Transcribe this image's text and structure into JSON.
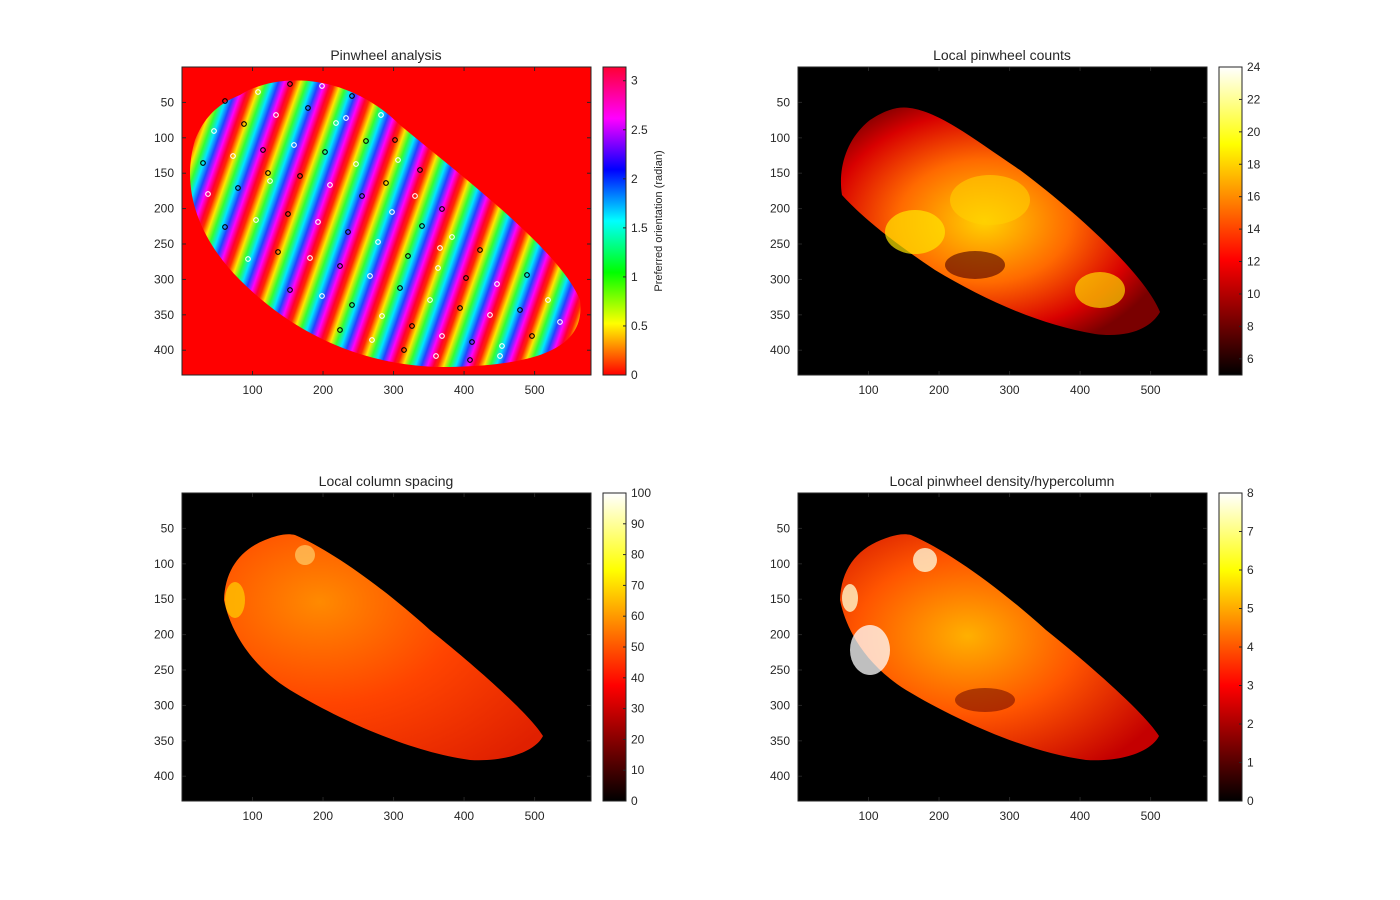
{
  "chart_data": [
    {
      "type": "heatmap",
      "title": "Pinwheel analysis",
      "colormap": "hsv",
      "colorbar_label": "Preferred orientation (radian)",
      "colorbar_ticks": [
        "0",
        "0.5",
        "1",
        "1.5",
        "2",
        "2.5",
        "3"
      ],
      "colorbar_values": [
        0,
        0.5,
        1,
        1.5,
        2,
        2.5,
        3
      ],
      "clim": [
        0,
        3.14
      ],
      "background_color": "#ff0000",
      "xlim": [
        0,
        580
      ],
      "ylim": [
        0,
        435
      ],
      "xticks": [
        "100",
        "200",
        "300",
        "400",
        "500"
      ],
      "xtick_values": [
        100,
        200,
        300,
        400,
        500
      ],
      "yticks": [
        "50",
        "100",
        "150",
        "200",
        "250",
        "300",
        "350",
        "400"
      ],
      "ytick_values": [
        50,
        100,
        150,
        200,
        250,
        300,
        350,
        400
      ],
      "overlay": "pinwheel centers (white and black circles)",
      "legend": "none",
      "grid": false
    },
    {
      "type": "heatmap",
      "title": "Local pinwheel counts",
      "colormap": "hot",
      "colorbar_ticks": [
        "6",
        "8",
        "10",
        "12",
        "14",
        "16",
        "18",
        "20",
        "22",
        "24"
      ],
      "colorbar_values": [
        6,
        8,
        10,
        12,
        14,
        16,
        18,
        20,
        22,
        24
      ],
      "clim": [
        5,
        24
      ],
      "background_color": "#000000",
      "xlim": [
        0,
        580
      ],
      "ylim": [
        0,
        435
      ],
      "xticks": [
        "100",
        "200",
        "300",
        "400",
        "500"
      ],
      "xtick_values": [
        100,
        200,
        300,
        400,
        500
      ],
      "yticks": [
        "50",
        "100",
        "150",
        "200",
        "250",
        "300",
        "350",
        "400"
      ],
      "ytick_values": [
        50,
        100,
        150,
        200,
        250,
        300,
        350,
        400
      ],
      "legend": "none",
      "grid": false
    },
    {
      "type": "heatmap",
      "title": "Local column spacing",
      "colormap": "hot",
      "colorbar_ticks": [
        "0",
        "10",
        "20",
        "30",
        "40",
        "50",
        "60",
        "70",
        "80",
        "90",
        "100"
      ],
      "colorbar_values": [
        0,
        10,
        20,
        30,
        40,
        50,
        60,
        70,
        80,
        90,
        100
      ],
      "clim": [
        0,
        100
      ],
      "background_color": "#000000",
      "xlim": [
        0,
        580
      ],
      "ylim": [
        0,
        435
      ],
      "xticks": [
        "100",
        "200",
        "300",
        "400",
        "500"
      ],
      "xtick_values": [
        100,
        200,
        300,
        400,
        500
      ],
      "yticks": [
        "50",
        "100",
        "150",
        "200",
        "250",
        "300",
        "350",
        "400"
      ],
      "ytick_values": [
        50,
        100,
        150,
        200,
        250,
        300,
        350,
        400
      ],
      "legend": "none",
      "grid": false
    },
    {
      "type": "heatmap",
      "title": "Local pinwheel density/hypercolumn",
      "colormap": "hot",
      "colorbar_ticks": [
        "0",
        "1",
        "2",
        "3",
        "4",
        "5",
        "6",
        "7",
        "8"
      ],
      "colorbar_values": [
        0,
        1,
        2,
        3,
        4,
        5,
        6,
        7,
        8
      ],
      "clim": [
        0,
        8
      ],
      "background_color": "#000000",
      "xlim": [
        0,
        580
      ],
      "ylim": [
        0,
        435
      ],
      "xticks": [
        "100",
        "200",
        "300",
        "400",
        "500"
      ],
      "xtick_values": [
        100,
        200,
        300,
        400,
        500
      ],
      "yticks": [
        "50",
        "100",
        "150",
        "200",
        "250",
        "300",
        "350",
        "400"
      ],
      "ytick_values": [
        50,
        100,
        150,
        200,
        250,
        300,
        350,
        400
      ],
      "legend": "none",
      "grid": false
    }
  ]
}
